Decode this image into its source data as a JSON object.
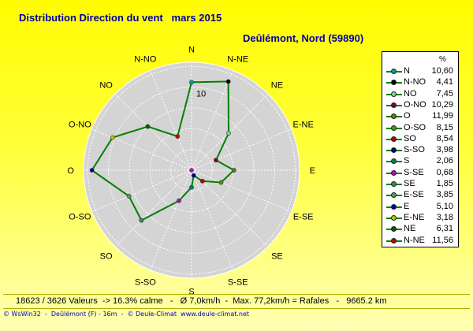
{
  "header": {
    "title": "Distribution Direction du vent   mars 2015",
    "station": "Deûlémont, Nord (59890)"
  },
  "chart_data": {
    "type": "radar",
    "title": "Distribution Direction du vent   mars 2015",
    "directions": [
      "N",
      "N-NE",
      "NE",
      "E-NE",
      "E",
      "E-SE",
      "SE",
      "S-SE",
      "S",
      "S-SO",
      "SO",
      "O-SO",
      "O",
      "O-NO",
      "NO",
      "N-NO"
    ],
    "values": [
      10.6,
      11.56,
      6.31,
      3.18,
      5.1,
      3.85,
      1.85,
      0.68,
      2.06,
      3.98,
      8.54,
      8.15,
      11.99,
      10.29,
      7.45,
      4.41
    ],
    "radius_label": "10",
    "rmax": 13,
    "grid_rings": [
      2.5,
      5,
      7.5,
      10,
      12.5
    ],
    "colors": [
      "#00a0a0",
      "#000000",
      "#7fd0a0",
      "#800040",
      "#608000",
      "#40a000",
      "#c00000",
      "#000080",
      "#008060",
      "#c000c0",
      "#408060",
      "#50a050",
      "#0000c0",
      "#c0c000",
      "#006000",
      "#d00000"
    ],
    "line_color": "#008000",
    "grid": true,
    "legend_position": "right"
  },
  "legend": {
    "unit": "%",
    "entries": [
      {
        "dir": "N",
        "value": "10,60",
        "color": "#00a0a0"
      },
      {
        "dir": "N-NO",
        "value": "4,41",
        "color": "#000000"
      },
      {
        "dir": "NO",
        "value": "7,45",
        "color": "#7fd0a0"
      },
      {
        "dir": "O-NO",
        "value": "10,29",
        "color": "#800040"
      },
      {
        "dir": "O",
        "value": "11,99",
        "color": "#608000"
      },
      {
        "dir": "O-SO",
        "value": "8,15",
        "color": "#40a000"
      },
      {
        "dir": "SO",
        "value": "8,54",
        "color": "#c00000"
      },
      {
        "dir": "S-SO",
        "value": "3,98",
        "color": "#000080"
      },
      {
        "dir": "S",
        "value": "2,06",
        "color": "#008060"
      },
      {
        "dir": "S-SE",
        "value": "0,68",
        "color": "#c000c0"
      },
      {
        "dir": "SE",
        "value": "1,85",
        "color": "#408060"
      },
      {
        "dir": "E-SE",
        "value": "3,85",
        "color": "#50a050"
      },
      {
        "dir": "E",
        "value": "5,10",
        "color": "#0000c0"
      },
      {
        "dir": "E-NE",
        "value": "3,18",
        "color": "#c0c000"
      },
      {
        "dir": "NE",
        "value": "6,31",
        "color": "#006000"
      },
      {
        "dir": "N-NE",
        "value": "11,56",
        "color": "#d00000"
      }
    ]
  },
  "stats": "18623 / 3626 Valeurs  -> 16.3% calme   -   Ø 7,0km/h  -  Max. 77,2km/h = Rafales   -   9665.2 km",
  "footer": "© WsWin32  -  Deûlémont (F) - 16m  -  © Deule-Climat  www.deule-climat.net"
}
